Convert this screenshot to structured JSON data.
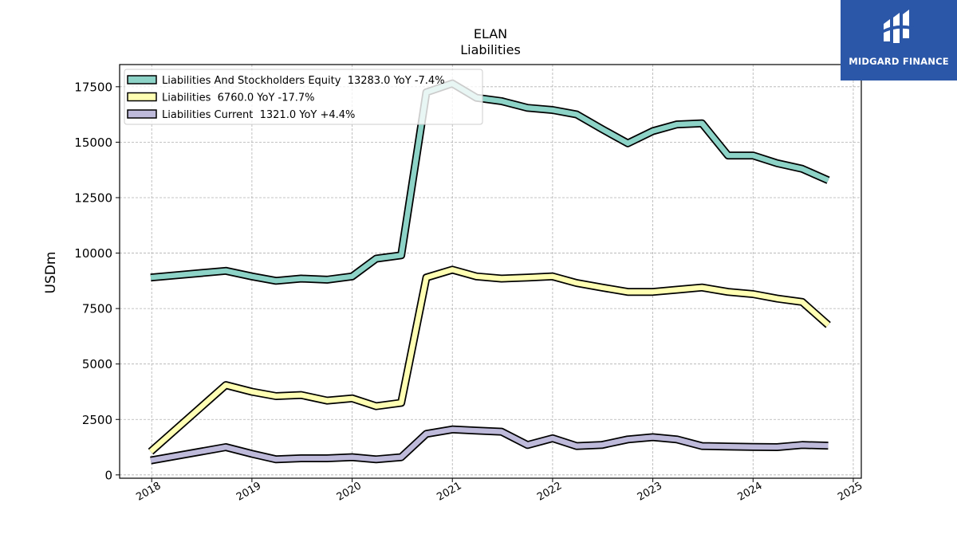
{
  "chart_data": {
    "type": "line",
    "title": "ELAN",
    "subtitle": "Liabilities",
    "ylabel": "USDm",
    "xlabel": "",
    "ylim": [
      -150,
      18500
    ],
    "xlim": [
      2017.68,
      2025.08
    ],
    "yticks": [
      0,
      2500,
      5000,
      7500,
      10000,
      12500,
      15000,
      17500
    ],
    "xticks": [
      2018,
      2019,
      2020,
      2021,
      2022,
      2023,
      2024,
      2025
    ],
    "grid": true,
    "legend_position": "top-left",
    "series": [
      {
        "name": "Liabilities And Stockholders Equity  13283.0 YoY -7.4%",
        "color": "#8dd3c7",
        "x": [
          2017.99,
          2018.74,
          2019.0,
          2019.24,
          2019.49,
          2019.75,
          2020.0,
          2020.24,
          2020.49,
          2020.74,
          2021.0,
          2021.24,
          2021.49,
          2021.75,
          2022.0,
          2022.24,
          2022.49,
          2022.75,
          2023.0,
          2023.24,
          2023.49,
          2023.75,
          2024.0,
          2024.24,
          2024.49,
          2024.75
        ],
        "y": [
          8900,
          9200,
          8950,
          8750,
          8850,
          8800,
          8950,
          9750,
          9900,
          17250,
          17650,
          17000,
          16850,
          16550,
          16450,
          16250,
          15600,
          14950,
          15500,
          15800,
          15850,
          14400,
          14400,
          14050,
          13800,
          13283
        ]
      },
      {
        "name": "Liabilities  6760.0 YoY -17.7%",
        "color": "#ffffb3",
        "x": [
          2017.99,
          2018.74,
          2019.0,
          2019.24,
          2019.49,
          2019.75,
          2020.0,
          2020.24,
          2020.49,
          2020.74,
          2021.0,
          2021.24,
          2021.49,
          2021.75,
          2022.0,
          2022.24,
          2022.49,
          2022.75,
          2023.0,
          2023.24,
          2023.49,
          2023.75,
          2024.0,
          2024.24,
          2024.49,
          2024.75
        ],
        "y": [
          1050,
          4050,
          3750,
          3550,
          3600,
          3350,
          3450,
          3100,
          3250,
          8900,
          9250,
          8950,
          8850,
          8900,
          8950,
          8650,
          8450,
          8250,
          8250,
          8350,
          8450,
          8250,
          8150,
          7950,
          7800,
          6760
        ]
      },
      {
        "name": "Liabilities Current  1321.0 YoY +4.4%",
        "color": "#bebada",
        "x": [
          2017.99,
          2018.74,
          2019.0,
          2019.24,
          2019.49,
          2019.75,
          2020.0,
          2020.24,
          2020.49,
          2020.74,
          2021.0,
          2021.24,
          2021.49,
          2021.75,
          2022.0,
          2022.24,
          2022.49,
          2022.75,
          2023.0,
          2023.24,
          2023.49,
          2023.75,
          2024.0,
          2024.24,
          2024.49,
          2024.75
        ],
        "y": [
          650,
          1250,
          950,
          700,
          750,
          750,
          800,
          700,
          800,
          1850,
          2050,
          2000,
          1950,
          1350,
          1650,
          1300,
          1350,
          1600,
          1700,
          1600,
          1300,
          1280,
          1260,
          1250,
          1350,
          1321
        ]
      }
    ]
  },
  "logo": {
    "text": "MIDGARD FINANCE",
    "icon": "midgard-logo-icon"
  }
}
